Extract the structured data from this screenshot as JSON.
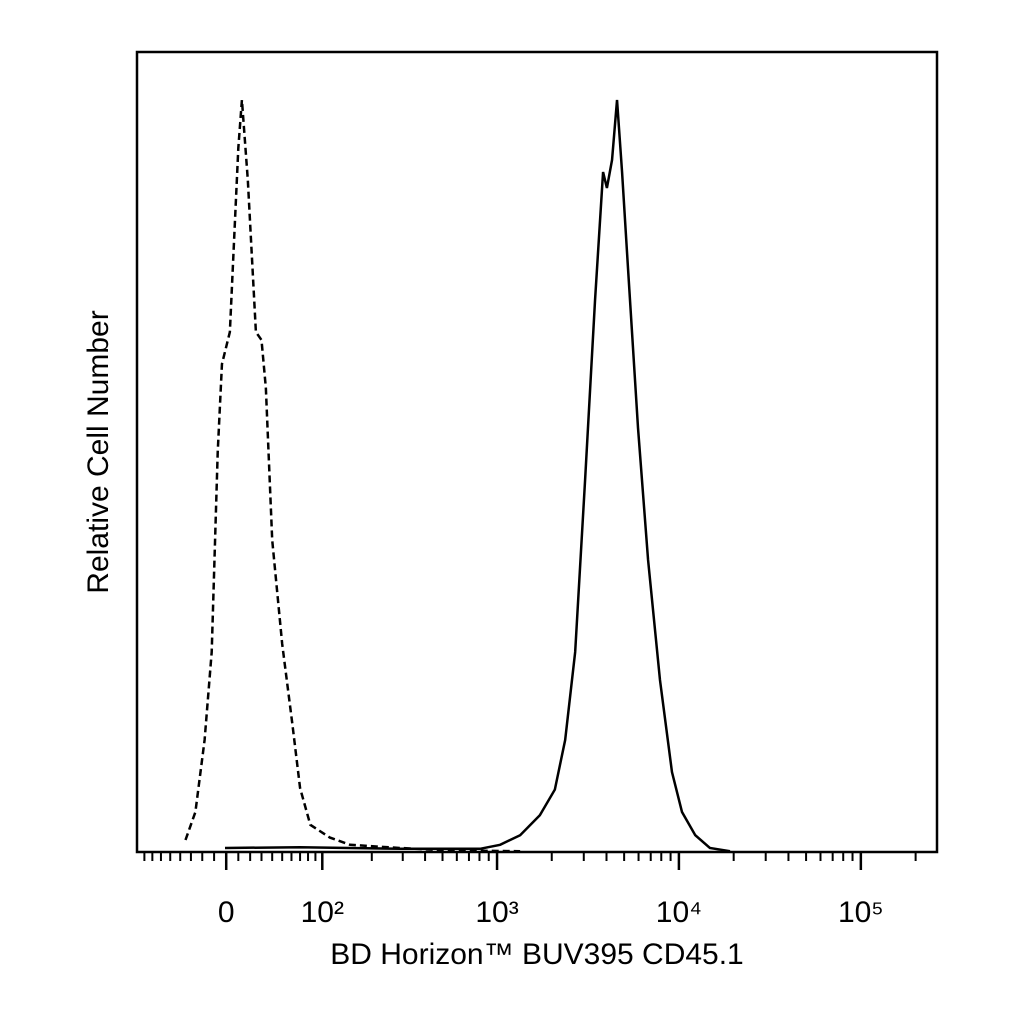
{
  "chart_data": {
    "type": "line",
    "xlabel": "BD Horizon™ BUV395 CD45.1",
    "ylabel": "Relative Cell Number",
    "xscale": "biexponential",
    "xlim": [
      -90,
      262144
    ],
    "ylim": [
      0,
      100
    ],
    "xticks": [
      0,
      {
        "value": 100,
        "label": "10²"
      },
      {
        "value": 1000,
        "label": "10³"
      },
      {
        "value": 10000,
        "label": "10⁴"
      },
      {
        "value": 100000,
        "label": "10⁵"
      }
    ],
    "xminorticks": [
      -80,
      -70,
      -60,
      -50,
      -40,
      -30,
      -20,
      -10,
      10,
      20,
      30,
      40,
      50,
      60,
      70,
      80,
      90,
      200,
      300,
      400,
      500,
      600,
      700,
      800,
      900,
      2000,
      3000,
      4000,
      5000,
      6000,
      7000,
      8000,
      9000,
      20000,
      30000,
      40000,
      50000,
      60000,
      70000,
      80000,
      90000,
      200000
    ],
    "series": [
      {
        "color": "#000000",
        "line_style": "dashed",
        "x": [
          -35,
          -26,
          -18,
          -12,
          -7,
          -3.5,
          3,
          10,
          13,
          18,
          25,
          30,
          34,
          40,
          50,
          61,
          70,
          83,
          112,
          149,
          290,
          551,
          1340
        ],
        "values": [
          1.5,
          5,
          14,
          25,
          50,
          61,
          65,
          88,
          94,
          84,
          65,
          64,
          58,
          39,
          26,
          16,
          8,
          3.4,
          1.8,
          0.9,
          0.5,
          0.2,
          0.1
        ]
      },
      {
        "color": "#000000",
        "line_style": "solid",
        "x": [
          -1,
          70,
          290,
          806,
          1040,
          1340,
          1720,
          2080,
          2370,
          2690,
          3050,
          3460,
          3830,
          4020,
          4290,
          4570,
          4870,
          5250,
          5960,
          6770,
          7870,
          9160,
          10400,
          12300,
          14800,
          19100
        ],
        "values": [
          0.5,
          0.6,
          0.4,
          0.4,
          0.9,
          2.1,
          4.6,
          7.8,
          14,
          25,
          46.5,
          69,
          85,
          83,
          86.5,
          94,
          85,
          73,
          53,
          36.5,
          21.5,
          10,
          5,
          2.1,
          0.5,
          0.1
        ]
      }
    ]
  }
}
